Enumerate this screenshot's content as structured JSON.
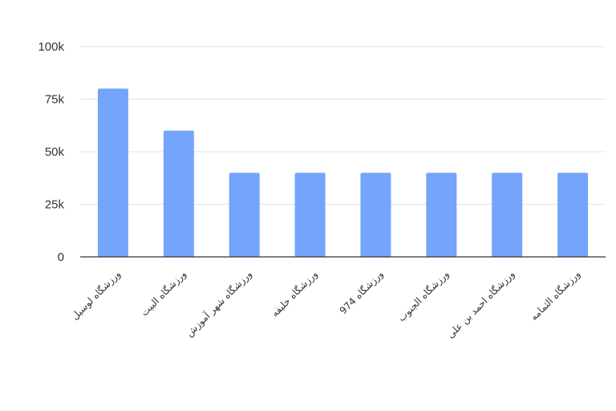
{
  "chart_data": {
    "type": "bar",
    "title": "",
    "xlabel": "",
    "ylabel": "",
    "ylim": [
      0,
      100000
    ],
    "yticks": [
      0,
      25000,
      50000,
      75000,
      100000
    ],
    "ytick_labels": [
      "0",
      "25k",
      "50k",
      "75k",
      "100k"
    ],
    "grid": true,
    "bar_color": "#74a4fb",
    "categories": [
      "ورزشگاه لوسیل",
      "ورزشگاه البیت",
      "ورزشگاه شهر آموزش",
      "ورزشگاه خلیفه",
      "ورزشگاه 974",
      "ورزشگاه الجنوب",
      "ورزشگاه احمد بن علی",
      "ورزشگاه الثمامه"
    ],
    "values": [
      80000,
      60000,
      40000,
      40000,
      40000,
      40000,
      40000,
      40000
    ]
  }
}
